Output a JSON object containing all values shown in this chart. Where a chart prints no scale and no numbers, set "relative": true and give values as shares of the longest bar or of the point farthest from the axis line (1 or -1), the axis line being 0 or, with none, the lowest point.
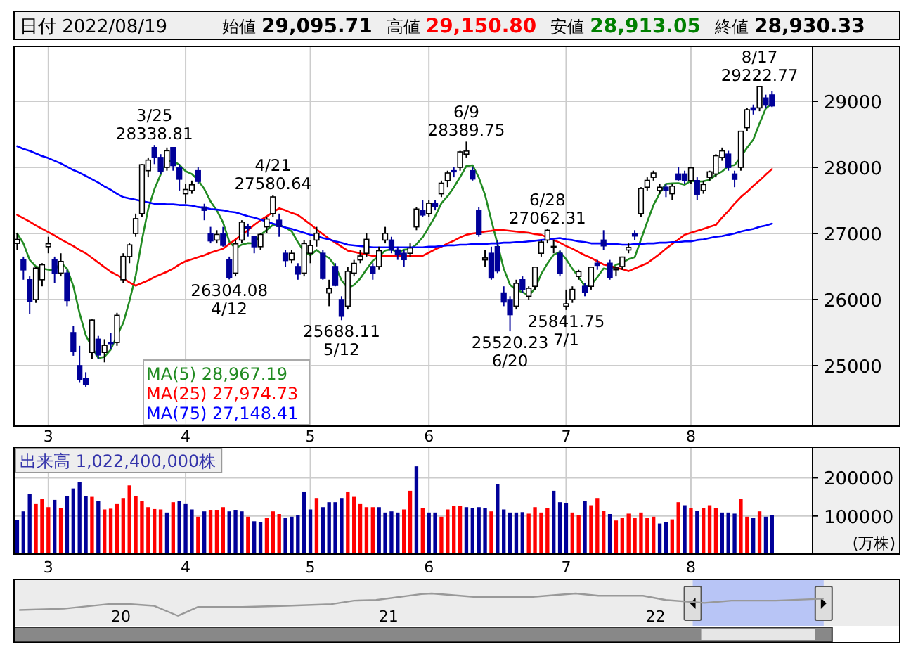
{
  "chart_data": [
    {
      "type": "candlestick",
      "title": "日付 2022/08/19",
      "annotations": [
        "始値 29,095.71",
        "高値 29,150.80",
        "安値 28,913.05",
        "終値 28,930.33",
        {
          "text": "3/25\n28338.81",
          "y": 28338.81
        },
        {
          "text": "26304.08\n4/12",
          "y": 26304.08
        },
        {
          "text": "4/21\n27580.64",
          "y": 27580.64
        },
        {
          "text": "25688.11\n5/12",
          "y": 25688.11
        },
        {
          "text": "6/9\n28389.75",
          "y": 28389.75
        },
        {
          "text": "25520.23\n6/20",
          "y": 25520.23
        },
        {
          "text": "6/28\n27062.31",
          "y": 27062.31
        },
        {
          "text": "25841.75\n7/1",
          "y": 25841.75
        },
        {
          "text": "8/17\n29222.77",
          "y": 29222.77
        }
      ],
      "categories": [
        null,
        null,
        null,
        null,
        null,
        "3",
        null,
        null,
        null,
        null,
        null,
        null,
        null,
        null,
        null,
        null,
        null,
        null,
        null,
        null,
        null,
        null,
        null,
        null,
        null,
        null,
        null,
        "4",
        null,
        null,
        null,
        null,
        null,
        null,
        null,
        null,
        null,
        null,
        null,
        null,
        null,
        null,
        null,
        null,
        null,
        null,
        null,
        "5",
        null,
        null,
        null,
        null,
        null,
        null,
        null,
        null,
        null,
        null,
        null,
        null,
        null,
        null,
        null,
        null,
        null,
        null,
        "6",
        null,
        null,
        null,
        null,
        null,
        null,
        null,
        null,
        null,
        null,
        null,
        null,
        null,
        null,
        null,
        null,
        null,
        null,
        null,
        null,
        null,
        "7",
        null,
        null,
        null,
        null,
        null,
        null,
        null,
        null,
        null,
        null,
        null,
        null,
        null,
        null,
        null,
        null,
        null,
        null,
        null,
        "8",
        null,
        null,
        null,
        null,
        null,
        null,
        null,
        null,
        null,
        null,
        null,
        null,
        null
      ],
      "ohlc": [
        [
          26850,
          27000,
          26750,
          26910
        ],
        [
          26600,
          26650,
          26300,
          26449
        ],
        [
          26300,
          26350,
          25780,
          25970
        ],
        [
          26000,
          26500,
          25950,
          26476
        ],
        [
          26300,
          26550,
          26200,
          26526
        ],
        [
          26800,
          26950,
          26700,
          26844
        ],
        [
          26600,
          26650,
          26250,
          26393
        ],
        [
          26400,
          26700,
          26350,
          26577
        ],
        [
          26400,
          26450,
          25900,
          25985
        ],
        [
          25500,
          25600,
          25150,
          25221
        ],
        [
          25000,
          25300,
          24750,
          24791
        ],
        [
          24800,
          24900,
          24681.74,
          24717
        ],
        [
          25200,
          25700,
          25100,
          25690
        ],
        [
          25400,
          25450,
          25100,
          25162
        ],
        [
          25200,
          25400,
          25050,
          25307
        ],
        [
          25350,
          25500,
          25250,
          25346
        ],
        [
          25350,
          25800,
          25300,
          25762
        ],
        [
          26300,
          26700,
          26250,
          26652
        ],
        [
          26650,
          26850,
          26550,
          26827
        ],
        [
          27000,
          27300,
          26950,
          27224
        ],
        [
          27300,
          28050,
          27250,
          28040
        ],
        [
          27950,
          28150,
          27850,
          28110
        ],
        [
          28300,
          28338.81,
          28050,
          28149
        ],
        [
          28150,
          28200,
          27900,
          27943
        ],
        [
          28000,
          28300,
          27950,
          28252
        ],
        [
          28300,
          28300,
          27950,
          28027
        ],
        [
          28000,
          28050,
          27650,
          27821
        ],
        [
          27600,
          27750,
          27450,
          27665
        ],
        [
          27650,
          27800,
          27600,
          27736
        ],
        [
          27950,
          28000,
          27750,
          27787
        ],
        [
          27400,
          27450,
          27200,
          27350
        ],
        [
          27000,
          27100,
          26850,
          26888
        ],
        [
          26900,
          27050,
          26850,
          26985
        ],
        [
          27000,
          27100,
          26800,
          26821
        ],
        [
          26600,
          26650,
          26304.08,
          26334
        ],
        [
          26400,
          26900,
          26350,
          26843
        ],
        [
          26900,
          27200,
          26850,
          27172
        ],
        [
          27100,
          27150,
          26950,
          27093
        ],
        [
          26950,
          26950,
          26700,
          26799
        ],
        [
          26800,
          27000,
          26750,
          26985
        ],
        [
          27100,
          27250,
          27000,
          27217
        ],
        [
          27300,
          27580.64,
          27250,
          27553
        ],
        [
          27200,
          27300,
          26950,
          27105
        ],
        [
          26700,
          26750,
          26500,
          26590
        ],
        [
          26600,
          26750,
          26550,
          26700
        ],
        [
          26500,
          26550,
          26300,
          26386
        ],
        [
          26400,
          26900,
          26350,
          26847
        ],
        [
          26700,
          26900,
          26550,
          26818
        ],
        [
          26900,
          27100,
          26800,
          27003
        ],
        [
          26700,
          26750,
          26300,
          26319
        ],
        [
          26100,
          26300,
          25900,
          26167
        ],
        [
          26500,
          26550,
          26200,
          26213
        ],
        [
          26000,
          26050,
          25688.11,
          25748
        ],
        [
          25900,
          26500,
          25850,
          26427
        ],
        [
          26400,
          26600,
          26350,
          26547
        ],
        [
          26600,
          26750,
          26550,
          26659
        ],
        [
          26700,
          27000,
          26650,
          26911
        ],
        [
          26500,
          26550,
          26300,
          26402
        ],
        [
          26500,
          26800,
          26450,
          26739
        ],
        [
          26900,
          27100,
          26850,
          27001
        ],
        [
          26900,
          26950,
          26700,
          26748
        ],
        [
          26750,
          26800,
          26600,
          26677
        ],
        [
          26700,
          26750,
          26500,
          26604
        ],
        [
          26700,
          26850,
          26650,
          26781
        ],
        [
          27100,
          27400,
          27050,
          27369
        ],
        [
          27350,
          27500,
          27250,
          27279
        ],
        [
          27300,
          27500,
          27250,
          27457
        ],
        [
          27450,
          27500,
          27350,
          27413
        ],
        [
          27600,
          27800,
          27550,
          27761
        ],
        [
          27800,
          27950,
          27700,
          27915
        ],
        [
          27950,
          28000,
          27850,
          27943
        ],
        [
          28000,
          28250,
          27950,
          28234
        ],
        [
          28200,
          28389.75,
          28150,
          28246
        ],
        [
          27950,
          28000,
          27800,
          27824
        ],
        [
          27350,
          27400,
          26950,
          26987
        ],
        [
          26600,
          26750,
          26500,
          26629
        ],
        [
          26700,
          26800,
          26300,
          26326
        ],
        [
          26800,
          26900,
          26400,
          26431
        ],
        [
          26100,
          26200,
          25900,
          25963
        ],
        [
          26000,
          26050,
          25520.23,
          25771
        ],
        [
          25900,
          26300,
          25850,
          26246
        ],
        [
          26300,
          26350,
          26100,
          26149
        ],
        [
          26050,
          26200,
          26000,
          26171
        ],
        [
          26200,
          26500,
          26150,
          26491
        ],
        [
          26700,
          26900,
          26650,
          26871
        ],
        [
          26900,
          27062.31,
          26850,
          27049
        ],
        [
          26800,
          26900,
          26700,
          26804
        ],
        [
          26700,
          26750,
          26350,
          26393
        ],
        [
          25900,
          26150,
          25841.75,
          25935
        ],
        [
          26000,
          26200,
          25950,
          26153
        ],
        [
          26350,
          26450,
          26300,
          26423
        ],
        [
          26200,
          26250,
          26050,
          26107
        ],
        [
          26200,
          26500,
          26150,
          26490
        ],
        [
          26550,
          26600,
          26450,
          26517
        ],
        [
          26900,
          27050,
          26750,
          26812
        ],
        [
          26550,
          26600,
          26300,
          26336
        ],
        [
          26450,
          26500,
          26350,
          26478
        ],
        [
          26500,
          26650,
          26450,
          26643
        ],
        [
          26750,
          26850,
          26700,
          26788
        ],
        [
          27000,
          27050,
          26900,
          26961
        ],
        [
          27300,
          27700,
          27250,
          27680
        ],
        [
          27700,
          27850,
          27650,
          27803
        ],
        [
          27850,
          27950,
          27800,
          27914
        ],
        [
          27650,
          27750,
          27600,
          27699
        ],
        [
          27700,
          27750,
          27550,
          27655
        ],
        [
          27600,
          27750,
          27500,
          27715
        ],
        [
          27900,
          28000,
          27800,
          27815
        ],
        [
          27900,
          27950,
          27750,
          27801
        ],
        [
          27800,
          28000,
          27750,
          27993
        ],
        [
          27800,
          27850,
          27500,
          27594
        ],
        [
          27650,
          27800,
          27600,
          27741
        ],
        [
          27850,
          27950,
          27800,
          27932
        ],
        [
          27900,
          28200,
          27850,
          28175
        ],
        [
          28150,
          28300,
          28100,
          28249
        ],
        [
          28200,
          28250,
          27950,
          27999
        ],
        [
          27900,
          27950,
          27700,
          27819
        ],
        [
          28000,
          28550,
          27950,
          28546
        ],
        [
          28600,
          28900,
          28550,
          28871
        ],
        [
          28900,
          28950,
          28800,
          28868
        ],
        [
          28900,
          29222.77,
          28850,
          29222
        ],
        [
          29050,
          29100,
          28900,
          28942
        ],
        [
          29095.71,
          29150.8,
          28913.05,
          28930.33
        ]
      ],
      "colors": [
        "#ffffff",
        "#000099",
        "#000099",
        "#ffffff",
        "#ffffff",
        "#ffffff",
        "#000099",
        "#ffffff",
        "#000099",
        "#000099",
        "#000099",
        "#000099",
        "#ffffff",
        "#000099",
        "#ffffff",
        "#000099",
        "#ffffff",
        "#ffffff",
        "#ffffff",
        "#ffffff",
        "#ffffff",
        "#ffffff",
        "#000099",
        "#000099",
        "#ffffff",
        "#000099",
        "#000099",
        "#ffffff",
        "#ffffff",
        "#000099",
        "#000099",
        "#000099",
        "#ffffff",
        "#000099",
        "#000099",
        "#ffffff",
        "#ffffff",
        "#000099",
        "#000099",
        "#ffffff",
        "#ffffff",
        "#ffffff",
        "#000099",
        "#000099",
        "#ffffff",
        "#000099",
        "#ffffff",
        "#ffffff",
        "#ffffff",
        "#000099",
        "#ffffff",
        "#000099",
        "#000099",
        "#ffffff",
        "#ffffff",
        "#ffffff",
        "#ffffff",
        "#000099",
        "#ffffff",
        "#ffffff",
        "#000099",
        "#000099",
        "#000099",
        "#ffffff",
        "#ffffff",
        "#000099",
        "#ffffff",
        "#000099",
        "#ffffff",
        "#ffffff",
        "#000099",
        "#ffffff",
        "#ffffff",
        "#000099",
        "#000099",
        "#ffffff",
        "#000099",
        "#000099",
        "#000099",
        "#000099",
        "#ffffff",
        "#000099",
        "#ffffff",
        "#ffffff",
        "#ffffff",
        "#ffffff",
        "#ffffff",
        "#000099",
        "#ffffff",
        "#ffffff",
        "#ffffff",
        "#000099",
        "#ffffff",
        "#000099",
        "#000099",
        "#000099",
        "#ffffff",
        "#ffffff",
        "#ffffff",
        "#000099",
        "#ffffff",
        "#ffffff",
        "#ffffff",
        "#ffffff",
        "#000099",
        "#ffffff",
        "#000099",
        "#000099",
        "#ffffff",
        "#000099",
        "#ffffff",
        "#ffffff",
        "#ffffff",
        "#ffffff",
        "#000099",
        "#000099",
        "#ffffff",
        "#ffffff",
        "#000099",
        "#ffffff",
        "#000099",
        "#000099"
      ],
      "series": [
        {
          "type": "line",
          "name": "MA(5) 28,967.19",
          "color": "#228b22",
          "values": [
            27000,
            26850,
            26600,
            26500,
            26470,
            26453,
            26442,
            26563,
            26465,
            26204,
            25793,
            25458,
            25281,
            25116,
            25133,
            25244,
            25453,
            25646,
            25979,
            26362,
            26901,
            27371,
            27670,
            27893,
            28099,
            28096,
            28038,
            27942,
            27900,
            27807,
            27672,
            27485,
            27349,
            27166,
            26876,
            26774,
            26831,
            26853,
            26848,
            26978,
            27053,
            27129,
            27132,
            27090,
            27033,
            26867,
            26726,
            26668,
            26751,
            26675,
            26631,
            26504,
            26290,
            26175,
            26220,
            26319,
            26458,
            26589,
            26652,
            26742,
            26760,
            26713,
            26754,
            26762,
            26836,
            26942,
            27098,
            27260,
            27456,
            27565,
            27698,
            27853,
            28020,
            28032,
            27847,
            27584,
            27202,
            26839,
            26467,
            26224,
            26147,
            26112,
            26060,
            26166,
            26386,
            26546,
            26677,
            26722,
            26610,
            26467,
            26342,
            26202,
            26222,
            26338,
            26470,
            26452,
            26527,
            26557,
            26611,
            26641,
            26910,
            27175,
            27429,
            27611,
            27750,
            27757,
            27760,
            27737,
            27796,
            27784,
            27789,
            27812,
            27887,
            27938,
            28019,
            28035,
            28158,
            28297,
            28421,
            28665,
            28890,
            28967.19
          ]
        },
        {
          "type": "line",
          "name": "MA(25) 27,974.73",
          "color": "#ff0000",
          "values": [
            27280,
            27230,
            27180,
            27120,
            27070,
            27020,
            26970,
            26910,
            26860,
            26810,
            26750,
            26700,
            26630,
            26560,
            26490,
            26420,
            26370,
            26320,
            26260,
            26210,
            26250,
            26290,
            26340,
            26380,
            26420,
            26470,
            26530,
            26580,
            26610,
            26640,
            26670,
            26710,
            26740,
            26770,
            26840,
            26910,
            26980,
            27050,
            27130,
            27200,
            27260,
            27320,
            27380,
            27350,
            27310,
            27280,
            27210,
            27140,
            27060,
            26990,
            26920,
            26860,
            26800,
            26740,
            26720,
            26700,
            26680,
            26660,
            26660,
            26660,
            26660,
            26660,
            26660,
            26660,
            26660,
            26660,
            26710,
            26760,
            26800,
            26850,
            26890,
            26940,
            26980,
            27000,
            27010,
            27030,
            27040,
            27060,
            27050,
            27040,
            27030,
            27020,
            27010,
            26990,
            26980,
            26940,
            26900,
            26860,
            26810,
            26770,
            26720,
            26670,
            26630,
            26580,
            26530,
            26510,
            26480,
            26460,
            26430,
            26470,
            26510,
            26550,
            26620,
            26690,
            26770,
            26840,
            26910,
            26980,
            27010,
            27040,
            27070,
            27100,
            27130,
            27240,
            27340,
            27450,
            27550,
            27630,
            27720,
            27800,
            27890,
            27974.73
          ]
        },
        {
          "type": "line",
          "name": "MA(75) 27,148.41",
          "color": "#0000ff",
          "values": [
            28320,
            28280,
            28250,
            28210,
            28170,
            28140,
            28100,
            28060,
            28010,
            27960,
            27920,
            27870,
            27820,
            27770,
            27710,
            27660,
            27600,
            27550,
            27530,
            27510,
            27490,
            27470,
            27450,
            27450,
            27440,
            27440,
            27430,
            27430,
            27420,
            27400,
            27390,
            27370,
            27360,
            27350,
            27330,
            27320,
            27290,
            27260,
            27240,
            27210,
            27180,
            27150,
            27120,
            27090,
            27070,
            27040,
            27010,
            26980,
            26960,
            26930,
            26910,
            26880,
            26860,
            26830,
            26820,
            26810,
            26800,
            26790,
            26790,
            26790,
            26790,
            26790,
            26790,
            26790,
            26790,
            26790,
            26800,
            26800,
            26810,
            26820,
            26820,
            26830,
            26830,
            26840,
            26840,
            26840,
            26850,
            26850,
            26860,
            26860,
            26870,
            26870,
            26880,
            26890,
            26900,
            26910,
            26920,
            26930,
            26910,
            26900,
            26880,
            26870,
            26850,
            26850,
            26850,
            26840,
            26840,
            26830,
            26830,
            26840,
            26840,
            26850,
            26850,
            26860,
            26860,
            26870,
            26870,
            26880,
            26880,
            26900,
            26910,
            26930,
            26950,
            26960,
            26980,
            27000,
            27030,
            27050,
            27070,
            27100,
            27120,
            27148.41
          ]
        }
      ],
      "ylim": [
        24085,
        29830
      ],
      "yticks": [
        25000,
        26000,
        27000,
        28000,
        29000
      ],
      "grid": true,
      "legend": "bottom left"
    },
    {
      "type": "bar",
      "title": "出来高 1,022,400,000株",
      "ylabel": "(万株)",
      "categories": [
        null,
        null,
        null,
        null,
        null,
        "3",
        null,
        null,
        null,
        null,
        null,
        null,
        null,
        null,
        null,
        null,
        null,
        null,
        null,
        null,
        null,
        null,
        null,
        null,
        null,
        null,
        null,
        "4",
        null,
        null,
        null,
        null,
        null,
        null,
        null,
        null,
        null,
        null,
        null,
        null,
        null,
        null,
        null,
        null,
        null,
        null,
        null,
        "5",
        null,
        null,
        null,
        null,
        null,
        null,
        null,
        null,
        null,
        null,
        null,
        null,
        null,
        null,
        null,
        null,
        null,
        null,
        "6",
        null,
        null,
        null,
        null,
        null,
        null,
        null,
        null,
        null,
        null,
        null,
        null,
        null,
        null,
        null,
        null,
        null,
        null,
        null,
        null,
        null,
        "7",
        null,
        null,
        null,
        null,
        null,
        null,
        null,
        null,
        null,
        null,
        null,
        null,
        null,
        null,
        null,
        null,
        null,
        null,
        null,
        "8",
        null,
        null,
        null,
        null,
        null,
        null,
        null,
        null,
        null,
        null,
        null,
        null,
        null
      ],
      "values": [
        89000,
        112000,
        158000,
        131000,
        144000,
        123000,
        142000,
        120000,
        152000,
        172000,
        188000,
        152000,
        150000,
        139000,
        117000,
        119000,
        131000,
        147000,
        180000,
        152000,
        139000,
        123000,
        118000,
        117000,
        109000,
        136000,
        139000,
        131000,
        117000,
        98000,
        112000,
        116000,
        116000,
        123000,
        112000,
        116000,
        112000,
        98000,
        86000,
        83000,
        95000,
        112000,
        105000,
        95000,
        98000,
        102000,
        164000,
        117000,
        147000,
        123000,
        136000,
        136000,
        147000,
        164000,
        150000,
        131000,
        123000,
        123000,
        123000,
        109000,
        112000,
        109000,
        117000,
        166000,
        230000,
        120000,
        109000,
        109000,
        98000,
        117000,
        127000,
        127000,
        123000,
        120000,
        123000,
        120000,
        112000,
        184000,
        117000,
        109000,
        109000,
        110000,
        106000,
        123000,
        109000,
        120000,
        166000,
        136000,
        133000,
        109000,
        102000,
        139000,
        128000,
        147000,
        114000,
        105000,
        88000,
        94000,
        106000,
        95000,
        109000,
        95000,
        98000,
        80000,
        83000,
        91000,
        136000,
        128000,
        120000,
        114000,
        120000,
        128000,
        120000,
        109000,
        109000,
        106000,
        144000,
        98000,
        95000,
        112000,
        98000,
        102240
      ],
      "colors": [
        "#000099",
        "#000099",
        "#000099",
        "#ff0000",
        "#ff0000",
        "#ff0000",
        "#000099",
        "#ff0000",
        "#000099",
        "#000099",
        "#000099",
        "#000099",
        "#ff0000",
        "#000099",
        "#ff0000",
        "#ff0000",
        "#ff0000",
        "#ff0000",
        "#ff0000",
        "#ff0000",
        "#ff0000",
        "#ff0000",
        "#ff0000",
        "#ff0000",
        "#000099",
        "#ff0000",
        "#000099",
        "#000099",
        "#000099",
        "#ff0000",
        "#000099",
        "#ff0000",
        "#ff0000",
        "#ff0000",
        "#000099",
        "#000099",
        "#000099",
        "#ff0000",
        "#000099",
        "#000099",
        "#ff0000",
        "#ff0000",
        "#ff0000",
        "#000099",
        "#000099",
        "#000099",
        "#000099",
        "#000099",
        "#ff0000",
        "#000099",
        "#000099",
        "#000099",
        "#000099",
        "#ff0000",
        "#ff0000",
        "#ff0000",
        "#ff0000",
        "#ff0000",
        "#000099",
        "#000099",
        "#000099",
        "#000099",
        "#ff0000",
        "#ff0000",
        "#000099",
        "#ff0000",
        "#000099",
        "#000099",
        "#ff0000",
        "#ff0000",
        "#ff0000",
        "#ff0000",
        "#000099",
        "#000099",
        "#000099",
        "#000099",
        "#ff0000",
        "#000099",
        "#000099",
        "#000099",
        "#000099",
        "#000099",
        "#ff0000",
        "#ff0000",
        "#ff0000",
        "#ff0000",
        "#000099",
        "#000099",
        "#000099",
        "#ff0000",
        "#ff0000",
        "#000099",
        "#ff0000",
        "#ff0000",
        "#ff0000",
        "#000099",
        "#ff0000",
        "#ff0000",
        "#ff0000",
        "#ff0000",
        "#ff0000",
        "#ff0000",
        "#ff0000",
        "#000099",
        "#000099",
        "#ff0000",
        "#ff0000",
        "#000099",
        "#ff0000",
        "#000099",
        "#ff0000",
        "#ff0000",
        "#ff0000",
        "#000099",
        "#000099",
        "#000099",
        "#ff0000",
        "#ff0000",
        "#000099",
        "#ff0000",
        "#000099",
        "#000099"
      ],
      "ylim": [
        0,
        280000
      ],
      "yticks": [
        100000,
        200000
      ],
      "grid": true
    },
    {
      "type": "line",
      "relative": true,
      "tick_labels": "x",
      "series": [
        {
          "color": "#999999",
          "x": [
            "2019-08-15",
            "2019-10-15",
            "2019-12-15",
            "2020-01-15",
            "2020-02-15",
            "2020-03-19",
            "2020-04-15",
            "2020-06-15",
            "2020-08-15",
            "2020-10-15",
            "2020-11-15",
            "2020-12-15",
            "2021-02-15",
            "2021-03-01",
            "2021-04-30",
            "2021-07-15",
            "2021-09-14",
            "2021-10-15",
            "2021-12-15",
            "2022-01-15",
            "2022-03-09",
            "2022-04-15",
            "2022-06-15",
            "2022-08-19"
          ],
          "values": [
            0.49,
            0.53,
            0.67,
            0.67,
            0.62,
            0.31,
            0.58,
            0.58,
            0.62,
            0.67,
            0.78,
            0.8,
            0.98,
            1,
            0.89,
            0.89,
            1,
            0.93,
            0.93,
            0.8,
            0.71,
            0.78,
            0.78,
            0.84
          ]
        }
      ],
      "xlim": [
        "2019-08-08",
        "2022-12-01"
      ],
      "xticks": [
        {
          "value": "2020-01-01",
          "label": "20"
        },
        {
          "value": "2021-01-01",
          "label": "21"
        },
        {
          "value": "2022-01-01",
          "label": "22"
        }
      ],
      "bands": [
        {
          "axis": "x",
          "from": "2022-02-21",
          "to": "2022-08-19",
          "color": "#b8c5f6"
        }
      ]
    }
  ]
}
